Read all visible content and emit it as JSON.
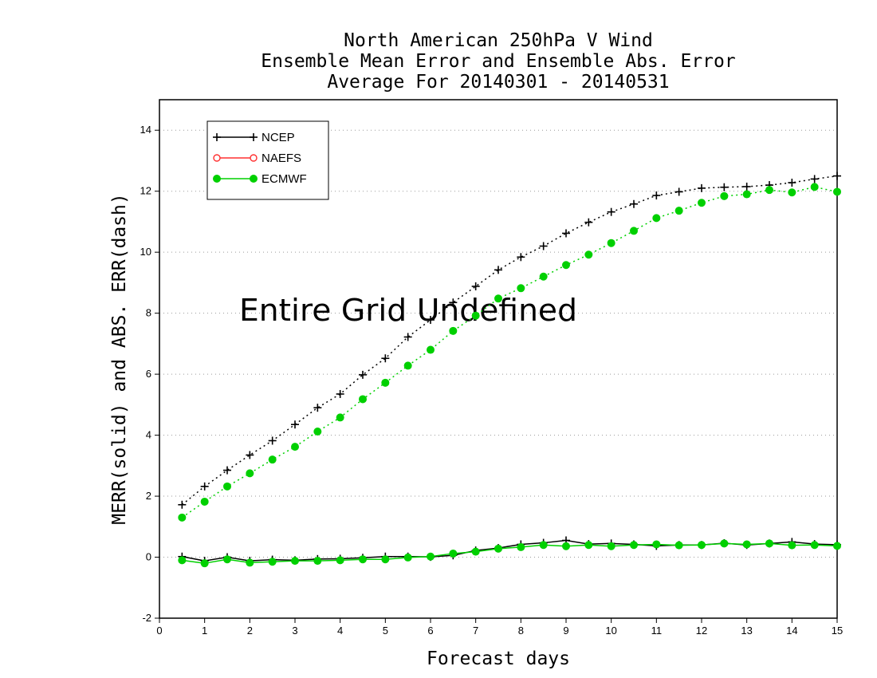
{
  "chart_data": {
    "type": "line",
    "title": [
      "North American 250hPa V Wind",
      "Ensemble Mean Error and Ensemble Abs. Error",
      "Average For 20140301 - 20140531"
    ],
    "xlabel": "Forecast days",
    "ylabel": "MERR(solid) and ABS. ERR(dash)",
    "xlim": [
      0,
      15
    ],
    "ylim": [
      -2,
      15
    ],
    "xticks": [
      0,
      1,
      2,
      3,
      4,
      5,
      6,
      7,
      8,
      9,
      10,
      11,
      12,
      13,
      14,
      15
    ],
    "yticks": [
      -2,
      0,
      2,
      4,
      6,
      8,
      10,
      12,
      14
    ],
    "grid": "horizontal dotted",
    "legend_position": "top-left",
    "annotation": "Entire Grid Undefined",
    "x": [
      0.5,
      1,
      1.5,
      2,
      2.5,
      3,
      3.5,
      4,
      4.5,
      5,
      5.5,
      6,
      6.5,
      7,
      7.5,
      8,
      8.5,
      9,
      9.5,
      10,
      10.5,
      11,
      11.5,
      12,
      12.5,
      13,
      13.5,
      14,
      14.5,
      15
    ],
    "legend": [
      {
        "label": "NCEP",
        "color": "#000000",
        "marker": "plus"
      },
      {
        "label": "NAEFS",
        "color": "#ff3030",
        "marker": "open-circle"
      },
      {
        "label": "ECMWF",
        "color": "#00d000",
        "marker": "filled-circle"
      }
    ],
    "series": [
      {
        "name": "NCEP",
        "kind": "abs-error (dash)",
        "color": "#000000",
        "marker": "plus",
        "values": [
          1.72,
          2.32,
          2.85,
          3.35,
          3.82,
          4.35,
          4.9,
          5.35,
          5.98,
          6.52,
          7.22,
          7.78,
          8.35,
          8.88,
          9.42,
          9.84,
          10.2,
          10.62,
          10.98,
          11.32,
          11.58,
          11.86,
          11.98,
          12.1,
          12.13,
          12.15,
          12.2,
          12.28,
          12.4,
          12.5
        ]
      },
      {
        "name": "ECMWF",
        "kind": "abs-error (dash)",
        "color": "#00d000",
        "marker": "filled-circle",
        "values": [
          1.3,
          1.82,
          2.32,
          2.75,
          3.2,
          3.62,
          4.12,
          4.58,
          5.18,
          5.72,
          6.28,
          6.8,
          7.42,
          7.92,
          8.48,
          8.82,
          9.2,
          9.58,
          9.92,
          10.3,
          10.7,
          11.12,
          11.36,
          11.62,
          11.84,
          11.9,
          12.04,
          11.96,
          12.14,
          11.98
        ]
      },
      {
        "name": "NCEP",
        "kind": "mean error (solid)",
        "color": "#000000",
        "marker": "plus",
        "values": [
          0.02,
          -0.12,
          0.0,
          -0.12,
          -0.08,
          -0.1,
          -0.06,
          -0.05,
          -0.02,
          0.02,
          0.02,
          0.01,
          0.06,
          0.22,
          0.3,
          0.42,
          0.47,
          0.55,
          0.43,
          0.45,
          0.42,
          0.37,
          0.4,
          0.4,
          0.46,
          0.4,
          0.45,
          0.5,
          0.43,
          0.41
        ]
      },
      {
        "name": "ECMWF",
        "kind": "mean error (solid)",
        "color": "#00d000",
        "marker": "filled-circle",
        "values": [
          -0.1,
          -0.2,
          -0.07,
          -0.18,
          -0.15,
          -0.12,
          -0.12,
          -0.1,
          -0.07,
          -0.07,
          -0.01,
          0.02,
          0.12,
          0.18,
          0.28,
          0.33,
          0.4,
          0.36,
          0.4,
          0.36,
          0.4,
          0.42,
          0.39,
          0.4,
          0.45,
          0.42,
          0.45,
          0.39,
          0.4,
          0.37
        ]
      }
    ]
  }
}
